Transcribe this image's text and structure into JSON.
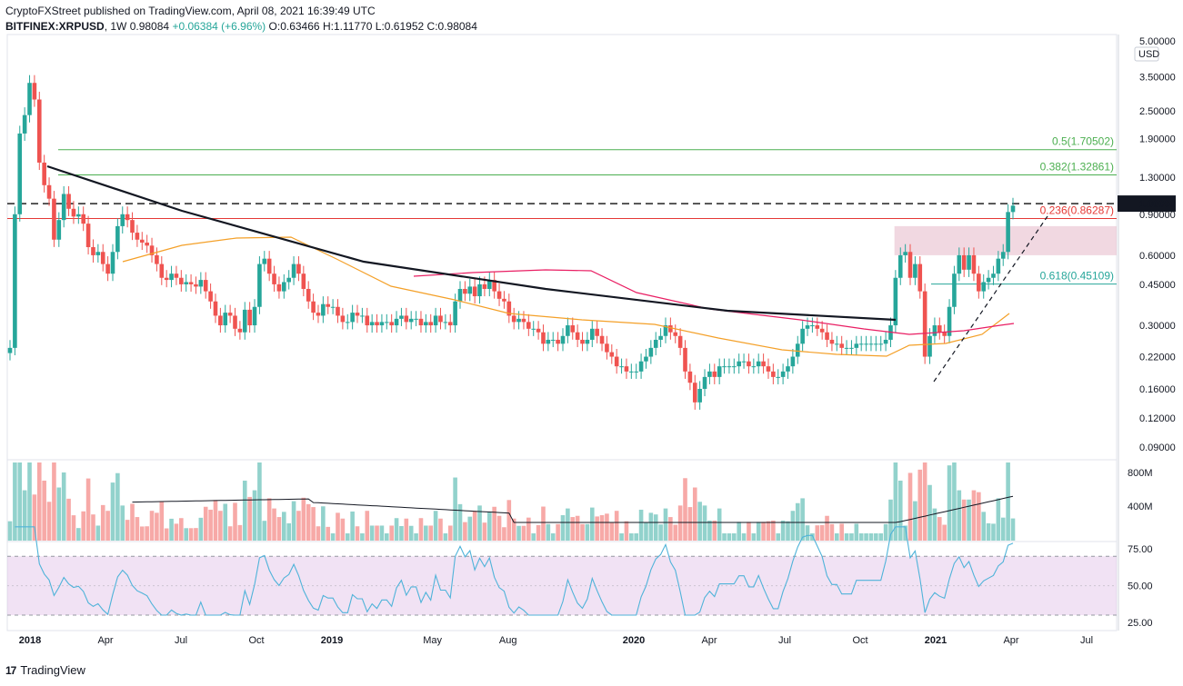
{
  "header": {
    "publisher": "CryptoFXStreet published on TradingView.com, April 08, 2021 16:39:49 UTC",
    "symbol": "BITFINEX:XRPUSD",
    "interval": "1W",
    "last": "0.98084",
    "change": "+0.06384 (+6.96%)",
    "open_label": "O:",
    "open": "0.63466",
    "high_label": "H:",
    "high": "1.11770",
    "low_label": "L:",
    "low": "0.61952",
    "close_label": "C:",
    "close": "0.98084"
  },
  "footer": {
    "logo_text": "TradingView",
    "logo_mark": "17"
  },
  "colors": {
    "up": "#26a69a",
    "down": "#ef5350",
    "fib_green": "#4caf50",
    "fib_red": "#e53935",
    "ma50": "#f4a028",
    "ma100": "#e91e63",
    "rsi": "#4fb3d9"
  },
  "chart_data": [
    {
      "type": "candlestick",
      "scale": "log",
      "ylabel": "USD",
      "price_ticks": [
        "5.00000",
        "3.50000",
        "2.50000",
        "1.90000",
        "1.30000",
        "0.90000",
        "0.60000",
        "0.45000",
        "0.30000",
        "0.22000",
        "0.16000",
        "0.12000",
        "0.09000"
      ],
      "current_price_label": "1.00000",
      "x_ticks": [
        "2018",
        "Apr",
        "Jul",
        "Oct",
        "2019",
        "May",
        "Aug",
        "2020",
        "Apr",
        "Jul",
        "Oct",
        "2021",
        "Apr",
        "Jul"
      ],
      "x_tick_dates": [
        "2018-01",
        "2018-04",
        "2018-07",
        "2018-10",
        "2019-01",
        "2019-05",
        "2019-08",
        "2020-01",
        "2020-04",
        "2020-07",
        "2020-10",
        "2021-01",
        "2021-04",
        "2021-07"
      ],
      "fibonacci": [
        {
          "label": "0.5(1.70502)",
          "value": 1.70502,
          "color": "#4caf50"
        },
        {
          "label": "0.382(1.32861)",
          "value": 1.32861,
          "color": "#4caf50"
        },
        {
          "label": "0.236(0.86287)",
          "value": 0.86287,
          "color": "#e53935"
        },
        {
          "label": "0.618(0.45109)",
          "value": 0.45109,
          "color": "#26a69a"
        }
      ],
      "horizontal_level": 1.0,
      "resistance_zone": [
        0.6,
        0.8
      ],
      "trendline_down": [
        [
          "2018-02",
          1.45
        ],
        [
          "2020-11",
          0.31
        ]
      ],
      "trendline_up_dashed": [
        [
          "2020-12",
          0.175
        ],
        [
          "2021-05",
          0.9
        ]
      ],
      "candles_close": [
        0.24,
        0.9,
        2.0,
        2.4,
        3.3,
        2.8,
        1.5,
        1.2,
        1.05,
        0.7,
        0.85,
        1.1,
        0.95,
        0.88,
        0.9,
        0.82,
        0.65,
        0.6,
        0.62,
        0.55,
        0.5,
        0.62,
        0.8,
        0.9,
        0.85,
        0.75,
        0.7,
        0.68,
        0.66,
        0.6,
        0.55,
        0.48,
        0.47,
        0.5,
        0.48,
        0.45,
        0.46,
        0.45,
        0.44,
        0.47,
        0.42,
        0.38,
        0.33,
        0.3,
        0.34,
        0.33,
        0.29,
        0.28,
        0.35,
        0.3,
        0.36,
        0.55,
        0.58,
        0.5,
        0.45,
        0.42,
        0.46,
        0.48,
        0.55,
        0.5,
        0.43,
        0.38,
        0.34,
        0.33,
        0.37,
        0.36,
        0.36,
        0.33,
        0.31,
        0.31,
        0.34,
        0.33,
        0.33,
        0.3,
        0.31,
        0.3,
        0.31,
        0.31,
        0.3,
        0.32,
        0.33,
        0.31,
        0.32,
        0.32,
        0.3,
        0.31,
        0.3,
        0.33,
        0.31,
        0.31,
        0.3,
        0.38,
        0.43,
        0.41,
        0.44,
        0.4,
        0.45,
        0.43,
        0.47,
        0.42,
        0.39,
        0.38,
        0.33,
        0.31,
        0.32,
        0.31,
        0.29,
        0.29,
        0.28,
        0.25,
        0.26,
        0.26,
        0.25,
        0.27,
        0.3,
        0.28,
        0.26,
        0.25,
        0.26,
        0.29,
        0.27,
        0.25,
        0.23,
        0.22,
        0.2,
        0.2,
        0.19,
        0.19,
        0.19,
        0.21,
        0.22,
        0.24,
        0.26,
        0.27,
        0.3,
        0.28,
        0.27,
        0.24,
        0.19,
        0.17,
        0.14,
        0.16,
        0.18,
        0.19,
        0.18,
        0.2,
        0.2,
        0.2,
        0.2,
        0.21,
        0.21,
        0.2,
        0.2,
        0.21,
        0.2,
        0.19,
        0.18,
        0.18,
        0.19,
        0.2,
        0.22,
        0.25,
        0.29,
        0.3,
        0.3,
        0.29,
        0.28,
        0.26,
        0.25,
        0.25,
        0.24,
        0.24,
        0.24,
        0.25,
        0.25,
        0.25,
        0.25,
        0.25,
        0.25,
        0.26,
        0.3,
        0.48,
        0.6,
        0.62,
        0.48,
        0.55,
        0.42,
        0.22,
        0.27,
        0.3,
        0.28,
        0.27,
        0.36,
        0.5,
        0.6,
        0.52,
        0.6,
        0.5,
        0.42,
        0.46,
        0.48,
        0.5,
        0.58,
        0.62,
        0.92,
        0.98
      ],
      "volume_axis_ticks": [
        "800M",
        "400M"
      ],
      "rsi_axis_ticks": [
        "75.00",
        "50.00",
        "25.00"
      ],
      "rsi_bounds": [
        30,
        70
      ]
    }
  ]
}
